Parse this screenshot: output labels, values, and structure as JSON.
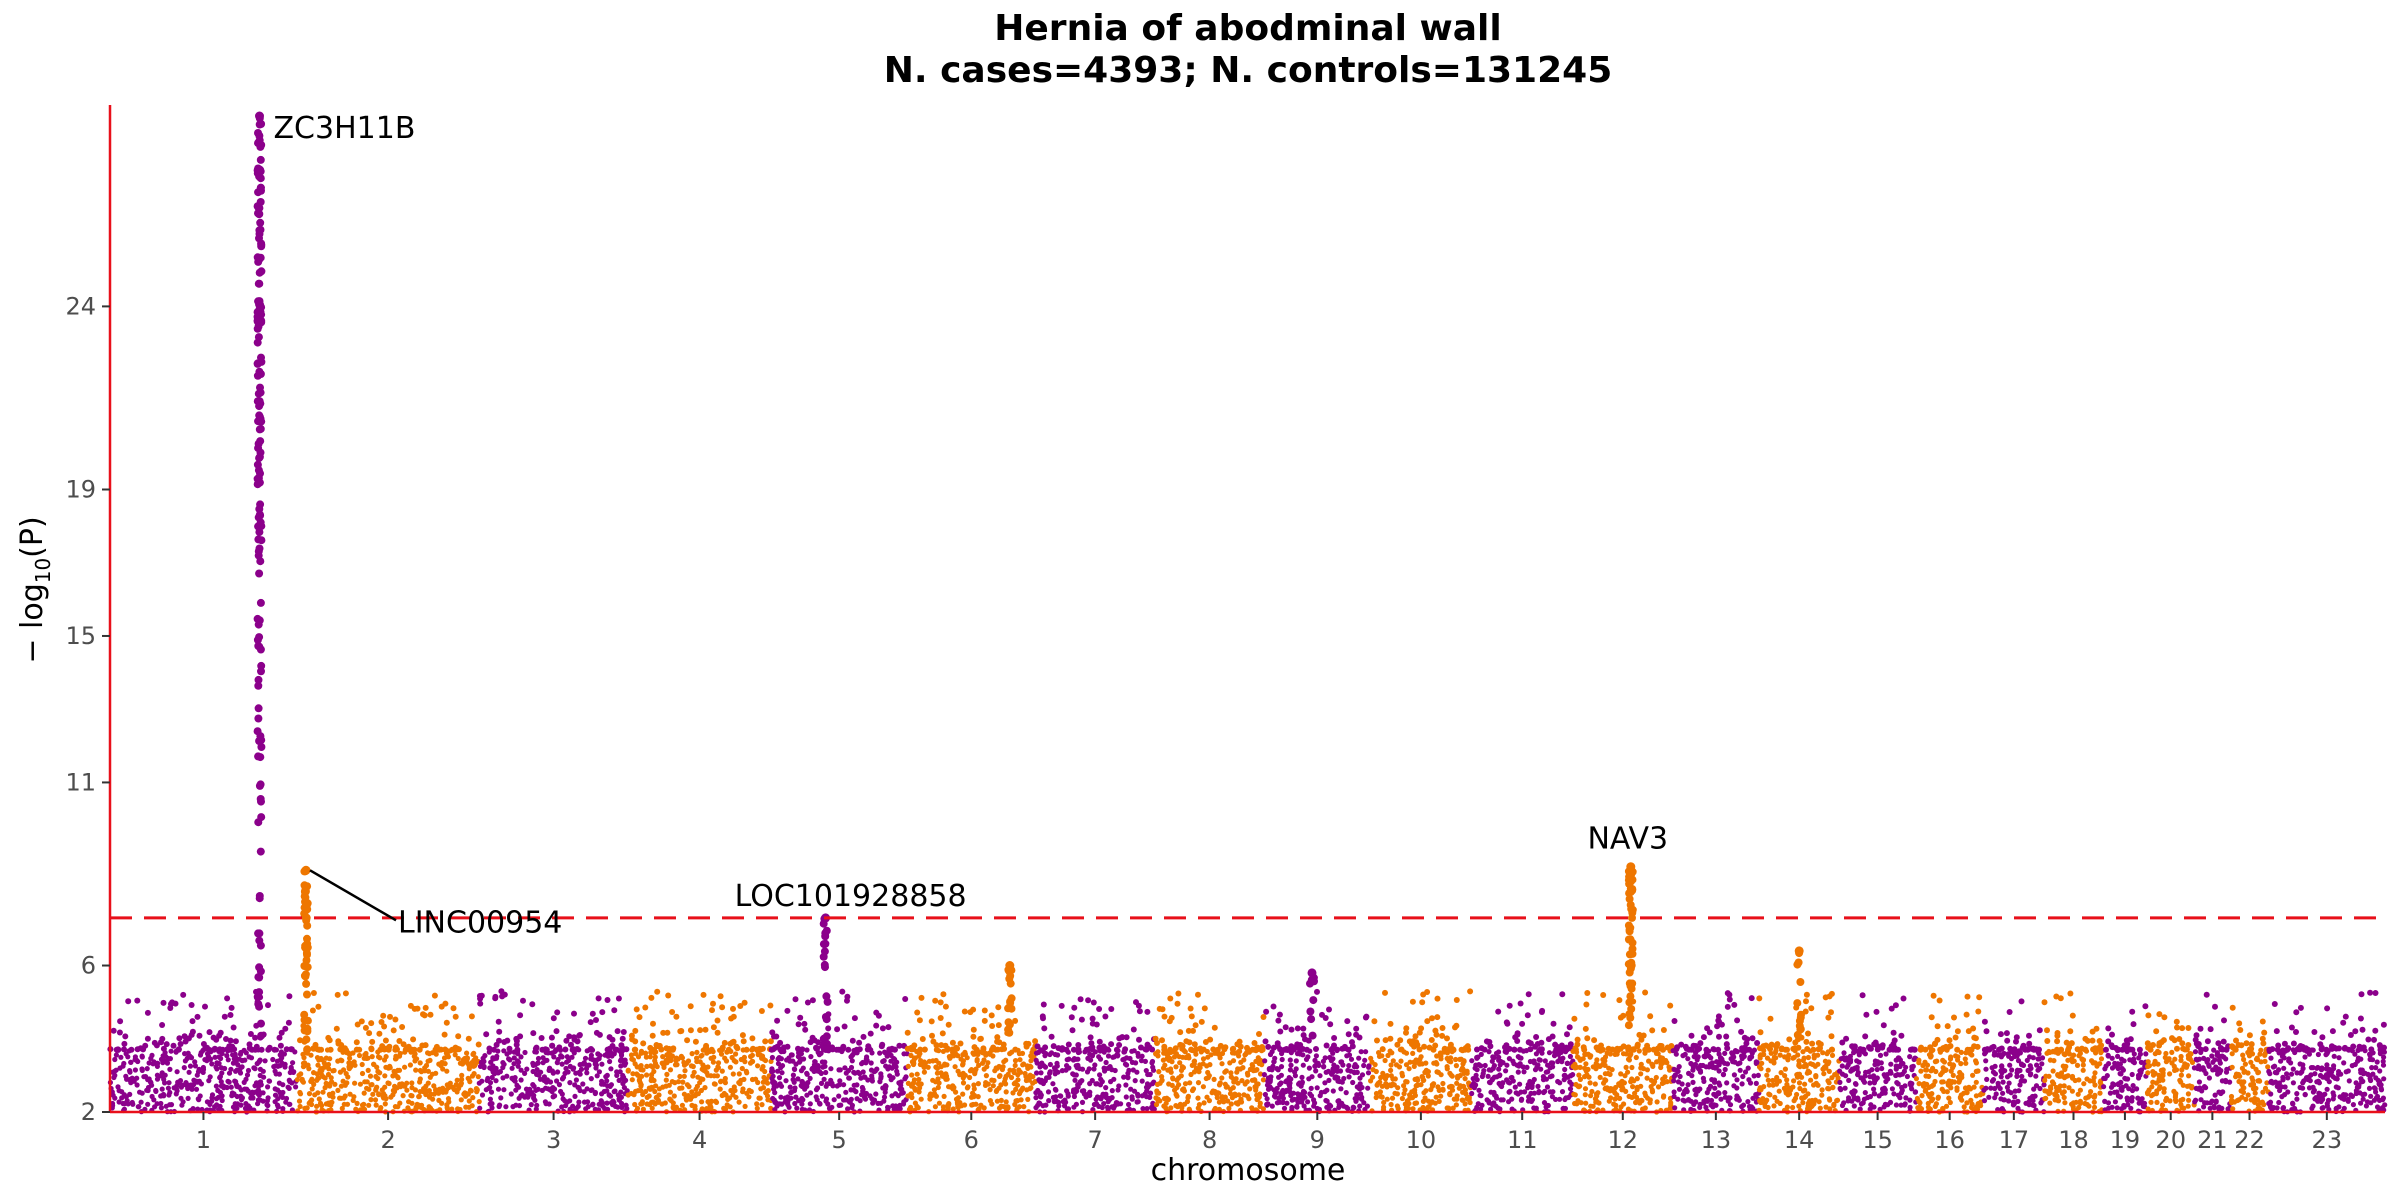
{
  "chart_data": {
    "type": "scatter",
    "subtype": "manhattan",
    "title": "Hernia of abodminal wall",
    "subtitle": "N. cases=4393; N. controls=131245",
    "xlabel": "chromosome",
    "ylabel_main": "− log",
    "ylabel_sub": "10",
    "ylabel_tail": "(P)",
    "ylim": [
      2,
      29.5
    ],
    "yticks": [
      2,
      6,
      11,
      15,
      19,
      24
    ],
    "significance_line": 7.3,
    "colors": {
      "odd": "#8b008b",
      "even": "#ee7600",
      "axis": "#e8101a",
      "threshold": "#e8101a"
    },
    "chromosomes": [
      {
        "label": "1",
        "size": 249
      },
      {
        "label": "2",
        "size": 243
      },
      {
        "label": "3",
        "size": 198
      },
      {
        "label": "4",
        "size": 191
      },
      {
        "label": "5",
        "size": 181
      },
      {
        "label": "6",
        "size": 171
      },
      {
        "label": "7",
        "size": 159
      },
      {
        "label": "8",
        "size": 146
      },
      {
        "label": "9",
        "size": 141
      },
      {
        "label": "10",
        "size": 135
      },
      {
        "label": "11",
        "size": 135
      },
      {
        "label": "12",
        "size": 133
      },
      {
        "label": "13",
        "size": 115
      },
      {
        "label": "14",
        "size": 107
      },
      {
        "label": "15",
        "size": 102
      },
      {
        "label": "16",
        "size": 90
      },
      {
        "label": "17",
        "size": 81
      },
      {
        "label": "18",
        "size": 78
      },
      {
        "label": "19",
        "size": 59
      },
      {
        "label": "20",
        "size": 63
      },
      {
        "label": "21",
        "size": 48
      },
      {
        "label": "22",
        "size": 51
      },
      {
        "label": "23",
        "size": 155
      }
    ],
    "peaks": [
      {
        "chr": "1",
        "pos": 0.8,
        "max": 29.2,
        "density": 160
      },
      {
        "chr": "2",
        "pos": 0.05,
        "max": 8.6,
        "density": 50
      },
      {
        "chr": "5",
        "pos": 0.4,
        "max": 7.3,
        "density": 20
      },
      {
        "chr": "12",
        "pos": 0.58,
        "max": 8.7,
        "density": 50
      },
      {
        "chr": "14",
        "pos": 0.5,
        "max": 6.4,
        "density": 12
      },
      {
        "chr": "9",
        "pos": 0.45,
        "max": 5.8,
        "density": 8
      },
      {
        "chr": "6",
        "pos": 0.8,
        "max": 6.0,
        "density": 15
      }
    ],
    "annotations": [
      {
        "label": "ZC3H11B",
        "chr": "1",
        "pos": 0.8,
        "y": 29.2
      },
      {
        "label": "LINC00954",
        "chr": "2",
        "pos": 0.05,
        "y": 8.6
      },
      {
        "label": "LOC101928858",
        "chr": "5",
        "pos": 0.4,
        "y": 7.3
      },
      {
        "label": "NAV3",
        "chr": "12",
        "pos": 0.58,
        "y": 8.7
      }
    ]
  }
}
